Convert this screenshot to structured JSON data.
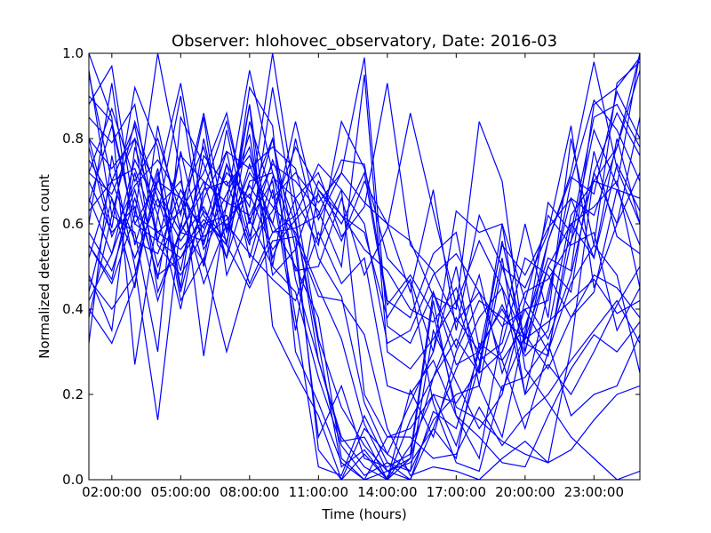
{
  "chart_data": {
    "type": "line",
    "title": "Observer: hlohovec_observatory, Date: 2016-03",
    "xlabel": "Time (hours)",
    "ylabel": "Normalized detection count",
    "xlim": [
      0,
      24
    ],
    "ylim": [
      0,
      1
    ],
    "x": [
      0,
      1,
      2,
      3,
      4,
      5,
      6,
      7,
      8,
      9,
      10,
      11,
      12,
      13,
      14,
      15,
      16,
      17,
      18,
      19,
      20,
      21,
      22,
      23,
      24
    ],
    "x_ticks": [
      {
        "value": 1,
        "label": "02:00:00"
      },
      {
        "value": 4,
        "label": "05:00:00"
      },
      {
        "value": 7,
        "label": "08:00:00"
      },
      {
        "value": 10,
        "label": "11:00:00"
      },
      {
        "value": 13,
        "label": "14:00:00"
      },
      {
        "value": 16,
        "label": "17:00:00"
      },
      {
        "value": 19,
        "label": "20:00:00"
      },
      {
        "value": 22,
        "label": "23:00:00"
      }
    ],
    "y_ticks": [
      {
        "value": 0,
        "label": "0.0"
      },
      {
        "value": 0.2,
        "label": "0.2"
      },
      {
        "value": 0.4,
        "label": "0.4"
      },
      {
        "value": 0.6,
        "label": "0.6"
      },
      {
        "value": 0.8,
        "label": "0.8"
      },
      {
        "value": 1.0,
        "label": "1.0"
      }
    ],
    "grid": false,
    "line_color": "#0000ff",
    "series": [
      {
        "values": [
          1.0,
          0.85,
          0.27,
          0.62,
          0.9,
          0.55,
          0.74,
          0.64,
          1.0,
          0.65,
          0.33,
          0.17,
          0.08,
          0.02,
          0.0,
          0.12,
          0.05,
          0.32,
          0.28,
          0.12,
          0.3,
          0.56,
          0.82,
          0.69,
          1.0
        ]
      },
      {
        "values": [
          0.95,
          0.7,
          0.83,
          0.55,
          0.48,
          0.58,
          0.72,
          0.66,
          0.8,
          0.47,
          0.28,
          0.1,
          0.03,
          0.0,
          0.05,
          0.24,
          0.38,
          0.3,
          0.41,
          0.29,
          0.35,
          0.62,
          0.7,
          0.78,
          0.96
        ]
      },
      {
        "values": [
          0.88,
          0.97,
          0.62,
          1.0,
          0.72,
          0.29,
          0.65,
          0.96,
          0.72,
          0.57,
          0.07,
          0.0,
          0.12,
          0.06,
          0.18,
          0.3,
          0.5,
          0.22,
          0.1,
          0.35,
          0.56,
          0.72,
          0.98,
          0.73,
          0.6
        ]
      },
      {
        "values": [
          0.8,
          0.59,
          0.92,
          0.78,
          0.45,
          0.8,
          0.55,
          0.92,
          0.83,
          0.3,
          0.18,
          0.04,
          0.0,
          0.02,
          0.04,
          0.12,
          0.26,
          0.38,
          0.45,
          0.33,
          0.65,
          0.58,
          0.85,
          0.88,
          0.78
        ]
      },
      {
        "values": [
          0.75,
          0.66,
          0.45,
          0.83,
          0.58,
          0.68,
          0.84,
          0.61,
          0.7,
          0.38,
          0.03,
          0.01,
          0.15,
          0.04,
          0.02,
          0.35,
          0.23,
          0.12,
          0.2,
          0.42,
          0.33,
          0.48,
          0.72,
          0.6,
          0.85
        ]
      },
      {
        "values": [
          0.65,
          0.83,
          0.6,
          0.7,
          0.93,
          0.62,
          0.55,
          0.88,
          0.36,
          0.25,
          0.15,
          0.0,
          0.06,
          0.0,
          0.08,
          0.2,
          0.18,
          0.26,
          0.52,
          0.2,
          0.44,
          0.66,
          0.52,
          0.74,
          0.63
        ]
      },
      {
        "values": [
          0.55,
          0.47,
          0.72,
          0.5,
          0.65,
          0.78,
          0.58,
          0.72,
          0.64,
          0.58,
          0.45,
          0.33,
          0.13,
          0.02,
          0.05,
          0.42,
          0.15,
          0.05,
          0.35,
          0.6,
          0.38,
          0.8,
          0.55,
          0.93,
          0.98
        ]
      },
      {
        "values": [
          0.48,
          0.35,
          0.78,
          0.62,
          0.4,
          0.68,
          0.7,
          0.55,
          0.92,
          0.61,
          0.28,
          0.09,
          0.1,
          0.0,
          0.21,
          0.1,
          0.3,
          0.42,
          0.38,
          0.33,
          0.5,
          0.44,
          0.77,
          0.57,
          0.53
        ]
      },
      {
        "values": [
          0.42,
          0.53,
          0.68,
          0.47,
          0.77,
          0.54,
          0.64,
          0.81,
          0.48,
          0.54,
          0.1,
          0.22,
          0.05,
          0.03,
          0.06,
          0.44,
          0.31,
          0.48,
          0.25,
          0.4,
          0.42,
          0.7,
          0.89,
          0.82,
          0.7
        ]
      },
      {
        "values": [
          0.38,
          0.62,
          0.58,
          0.3,
          0.85,
          0.74,
          0.59,
          0.69,
          0.6,
          0.5,
          0.38,
          0.05,
          0.0,
          0.1,
          0.12,
          0.2,
          0.08,
          0.27,
          0.56,
          0.32,
          0.29,
          0.6,
          0.64,
          0.7,
          0.45
        ]
      },
      {
        "values": [
          0.32,
          0.76,
          0.5,
          0.14,
          0.6,
          0.51,
          0.82,
          0.57,
          0.75,
          0.6,
          0.32,
          0.03,
          0.07,
          0.0,
          0.14,
          0.24,
          0.33,
          0.25,
          0.3,
          0.44,
          0.47,
          0.56,
          0.7,
          0.68,
          0.55
        ]
      },
      {
        "values": [
          0.7,
          0.58,
          0.64,
          0.42,
          0.59,
          0.85,
          0.48,
          0.61,
          0.5,
          0.44,
          0.24,
          0.08,
          0.01,
          0.04,
          0.0,
          0.16,
          0.12,
          0.3,
          0.21,
          0.34,
          0.26,
          0.38,
          0.48,
          0.45,
          0.38
        ]
      },
      {
        "values": [
          0.6,
          0.93,
          0.55,
          0.73,
          0.44,
          0.66,
          0.77,
          0.73,
          0.78,
          0.73,
          0.52,
          0.43,
          0.18,
          0.06,
          0.02,
          0.14,
          0.2,
          0.22,
          0.5,
          0.45,
          0.58,
          0.83,
          0.45,
          0.6,
          0.72
        ]
      },
      {
        "values": [
          0.85,
          0.79,
          0.88,
          0.56,
          0.52,
          0.6,
          0.62,
          0.46,
          0.58,
          0.62,
          0.74,
          0.68,
          0.2,
          0.1,
          0.1,
          0.05,
          0.06,
          0.17,
          0.08,
          0.15,
          0.2,
          0.28,
          0.35,
          0.42,
          0.32
        ]
      },
      {
        "values": [
          0.72,
          0.67,
          0.8,
          0.68,
          0.58,
          0.56,
          0.67,
          0.78,
          0.52,
          0.66,
          0.55,
          0.84,
          0.73,
          0.52,
          0.46,
          0.18,
          0.04,
          0.02,
          0.22,
          0.24,
          0.32,
          0.15,
          0.2,
          0.22,
          0.34
        ]
      },
      {
        "values": [
          0.9,
          0.84,
          0.6,
          0.56,
          0.76,
          0.7,
          0.52,
          0.84,
          0.66,
          0.72,
          0.65,
          0.72,
          0.65,
          0.6,
          0.56,
          0.43,
          0.4,
          0.84,
          0.7,
          0.3,
          0.5,
          0.6,
          0.52,
          0.8,
          0.6
        ]
      },
      {
        "values": [
          0.66,
          0.53,
          0.75,
          0.64,
          0.7,
          0.5,
          0.74,
          0.56,
          0.63,
          0.78,
          0.68,
          0.62,
          0.58,
          0.38,
          0.47,
          0.3,
          0.63,
          0.58,
          0.6,
          0.42,
          0.62,
          0.55,
          0.58,
          0.35,
          0.45
        ]
      },
      {
        "values": [
          0.58,
          0.49,
          0.66,
          0.48,
          0.52,
          0.63,
          0.56,
          0.74,
          0.6,
          0.84,
          0.61,
          0.72,
          0.99,
          0.36,
          0.32,
          0.44,
          0.27,
          0.3,
          0.55,
          0.48,
          0.59,
          0.66,
          0.62,
          0.78,
          1.0
        ]
      },
      {
        "values": [
          0.78,
          0.57,
          0.69,
          0.75,
          0.66,
          0.59,
          0.77,
          0.52,
          0.71,
          0.66,
          0.72,
          0.57,
          0.64,
          0.93,
          0.55,
          0.49,
          0.37,
          0.44,
          0.36,
          0.4,
          0.3,
          0.46,
          0.55,
          0.48,
          0.25
        ]
      },
      {
        "values": [
          0.52,
          0.7,
          0.73,
          0.58,
          0.63,
          0.72,
          0.86,
          0.6,
          0.8,
          0.54,
          0.7,
          0.62,
          0.54,
          0.49,
          0.4,
          0.37,
          0.45,
          0.28,
          0.32,
          0.52,
          0.48,
          0.38,
          0.44,
          0.68,
          0.66
        ]
      },
      {
        "values": [
          0.44,
          0.66,
          0.52,
          0.66,
          0.56,
          0.64,
          0.52,
          0.7,
          0.72,
          0.49,
          0.5,
          0.66,
          0.48,
          0.59,
          0.86,
          0.63,
          0.41,
          0.56,
          0.45,
          0.2,
          0.27,
          0.2,
          0.3,
          0.41,
          0.5
        ]
      },
      {
        "values": [
          0.96,
          0.62,
          0.84,
          0.66,
          0.49,
          0.76,
          0.69,
          0.76,
          0.58,
          0.59,
          0.62,
          0.75,
          0.74,
          0.42,
          0.38,
          0.53,
          0.58,
          0.31,
          0.4,
          0.3,
          0.56,
          0.71,
          0.67,
          0.91,
          0.8
        ]
      },
      {
        "values": [
          0.63,
          0.7,
          0.56,
          0.53,
          0.68,
          0.57,
          0.61,
          0.67,
          0.54,
          0.61,
          0.67,
          0.56,
          0.7,
          0.6,
          0.44,
          0.68,
          0.35,
          0.62,
          0.5,
          0.33,
          0.37,
          0.42,
          0.47,
          0.39,
          0.42
        ]
      },
      {
        "values": [
          0.8,
          0.73,
          0.8,
          0.44,
          0.58,
          0.7,
          0.65,
          0.62,
          0.74,
          0.7,
          0.63,
          0.5,
          0.95,
          0.3,
          0.26,
          0.33,
          0.42,
          0.25,
          0.6,
          0.26,
          0.18,
          0.1,
          0.05,
          0.0,
          0.02
        ]
      },
      {
        "values": [
          0.4,
          0.32,
          0.46,
          0.72,
          0.42,
          0.52,
          0.3,
          0.49,
          0.68,
          0.35,
          0.68,
          0.6,
          0.72,
          0.41,
          0.48,
          0.39,
          0.17,
          0.14,
          0.09,
          0.06,
          0.04,
          0.07,
          0.14,
          0.2,
          0.22
        ]
      },
      {
        "values": [
          0.47,
          0.4,
          0.48,
          0.7,
          0.66,
          0.46,
          0.6,
          0.53,
          0.47,
          0.42,
          0.58,
          0.46,
          0.52,
          0.22,
          0.2,
          0.28,
          0.15,
          0.1,
          0.04,
          0.03,
          0.15,
          0.26,
          0.34,
          0.3,
          0.37
        ]
      },
      {
        "values": [
          0.72,
          0.87,
          0.7,
          0.8,
          0.62,
          0.86,
          0.58,
          0.88,
          0.5,
          0.8,
          0.56,
          0.68,
          0.6,
          0.32,
          0.35,
          0.48,
          0.53,
          0.44,
          0.28,
          0.36,
          0.52,
          0.49,
          0.88,
          0.92,
          0.99
        ]
      },
      {
        "values": [
          0.55,
          0.46,
          0.62,
          0.58,
          0.54,
          0.61,
          0.55,
          0.45,
          0.56,
          0.57,
          0.43,
          0.42,
          0.34,
          0.12,
          0.01,
          0.03,
          0.02,
          0.0,
          0.05,
          0.09,
          0.04,
          0.31,
          0.72,
          0.86,
          0.76
        ]
      }
    ]
  }
}
